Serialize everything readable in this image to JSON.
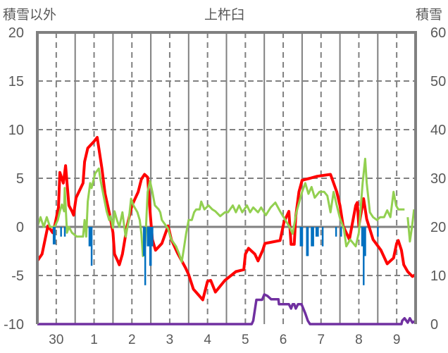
{
  "chart_data": {
    "type": "line",
    "title": "上杵臼",
    "ylabel_left": "積雪以外",
    "ylabel_right": "積雪",
    "ylim_left": [
      -10,
      20
    ],
    "yticks_left": [
      -10,
      -5,
      0,
      5,
      10,
      15,
      20
    ],
    "ylim_right": [
      0,
      60
    ],
    "yticks_right": [
      0,
      10,
      20,
      30,
      40,
      50,
      60
    ],
    "x_unit": "hours from start of day 30",
    "xlim": [
      0,
      240
    ],
    "xtick_labels": [
      "30",
      "1",
      "2",
      "3",
      "4",
      "5",
      "6",
      "7",
      "8",
      "9"
    ],
    "grid": true,
    "colors": {
      "temperature": "#ff0000",
      "wind": "#92d050",
      "precipitation": "#0070c0",
      "snow": "#7030a0",
      "axis": "#808080"
    },
    "series": [
      {
        "name": "red",
        "axis": "left",
        "type": "line",
        "points": [
          [
            0,
            -3.5
          ],
          [
            3,
            -2.8
          ],
          [
            6.7,
            0.1
          ],
          [
            9.8,
            -0.6
          ],
          [
            11,
            0.1
          ],
          [
            13.4,
            2
          ],
          [
            14.3,
            5.6
          ],
          [
            16.5,
            4.5
          ],
          [
            17.9,
            6.3
          ],
          [
            20,
            2.2
          ],
          [
            22,
            1.6
          ],
          [
            23,
            1.2
          ],
          [
            24.6,
            3
          ],
          [
            29,
            4.5
          ],
          [
            30,
            6.7
          ],
          [
            32,
            8.1
          ],
          [
            36,
            8.8
          ],
          [
            38,
            9.2
          ],
          [
            39,
            8.1
          ],
          [
            41,
            6
          ],
          [
            43,
            3.4
          ],
          [
            46,
            1.2
          ],
          [
            48,
            -0.6
          ],
          [
            49,
            -2.8
          ],
          [
            51,
            -3.5
          ],
          [
            52,
            -3.9
          ],
          [
            54,
            -2.8
          ],
          [
            57,
            0.1
          ],
          [
            60,
            2.2
          ],
          [
            64,
            3.6
          ],
          [
            66,
            4.9
          ],
          [
            68,
            5.4
          ],
          [
            70,
            5.1
          ],
          [
            71.5,
            1.6
          ],
          [
            73,
            -1.3
          ],
          [
            75,
            -2.4
          ],
          [
            79,
            -1.7
          ],
          [
            83,
            0.1
          ],
          [
            85,
            -1.3
          ],
          [
            89,
            -2.7
          ],
          [
            94,
            -4.2
          ],
          [
            96,
            -4.9
          ],
          [
            99,
            -6.4
          ],
          [
            105,
            -7.5
          ],
          [
            108,
            -5.6
          ],
          [
            110,
            -5.5
          ],
          [
            113,
            -6.7
          ],
          [
            119,
            -5.5
          ],
          [
            126,
            -4.6
          ],
          [
            131,
            -4.4
          ],
          [
            132,
            -2.8
          ],
          [
            134,
            -2.2
          ],
          [
            138,
            -2.8
          ],
          [
            140,
            -3.5
          ],
          [
            143,
            -2.4
          ],
          [
            144.4,
            -1.7
          ],
          [
            154,
            -1.4
          ],
          [
            156.5,
            0.5
          ],
          [
            159.6,
            1.6
          ],
          [
            161,
            -1.8
          ],
          [
            163,
            -1.8
          ],
          [
            164,
            1.1
          ],
          [
            166,
            3.6
          ],
          [
            168,
            4.8
          ],
          [
            173,
            5.0
          ],
          [
            177.5,
            5.2
          ],
          [
            186,
            5.4
          ],
          [
            190,
            3.6
          ],
          [
            192,
            2.2
          ],
          [
            194,
            0.1
          ],
          [
            198,
            -1.3
          ],
          [
            202,
            2.2
          ],
          [
            203,
            2.5
          ],
          [
            204,
            0.1
          ],
          [
            207,
            2.9
          ],
          [
            209,
            0.8
          ],
          [
            213,
            -1.3
          ],
          [
            218,
            -2.4
          ],
          [
            222,
            -3.8
          ],
          [
            226,
            -3.2
          ],
          [
            228,
            -1.7
          ],
          [
            229,
            -1.4
          ],
          [
            231,
            -2.4
          ],
          [
            232.5,
            -3.9
          ],
          [
            235,
            -4.6
          ],
          [
            238,
            -5.1
          ],
          [
            240,
            -4.9
          ]
        ]
      },
      {
        "name": "green",
        "axis": "left",
        "type": "line",
        "points": [
          [
            0,
            0
          ],
          [
            2,
            1
          ],
          [
            4,
            0
          ],
          [
            6,
            1
          ],
          [
            8,
            0
          ],
          [
            11,
            0
          ],
          [
            13,
            0.7
          ],
          [
            14.3,
            1.6
          ],
          [
            15.6,
            2.3
          ],
          [
            17,
            1.6
          ],
          [
            17.4,
            4
          ],
          [
            18.8,
            -0.6
          ],
          [
            20,
            0
          ],
          [
            22,
            -0.6
          ],
          [
            25,
            -1
          ],
          [
            29,
            -1
          ],
          [
            30,
            0.7
          ],
          [
            31,
            -1
          ],
          [
            32,
            2.6
          ],
          [
            33.5,
            4.5
          ],
          [
            34.4,
            4
          ],
          [
            36.7,
            5.5
          ],
          [
            39,
            6
          ],
          [
            40,
            4.9
          ],
          [
            42,
            3.2
          ],
          [
            44,
            1.6
          ],
          [
            45.6,
            0.7
          ],
          [
            46.5,
            1.1
          ],
          [
            48,
            -0.1
          ],
          [
            49,
            1.6
          ],
          [
            50.5,
            0.7
          ],
          [
            52,
            0
          ],
          [
            54,
            1.5
          ],
          [
            56,
            -1
          ],
          [
            58,
            0.7
          ],
          [
            59.5,
            2.9
          ],
          [
            61,
            2.2
          ],
          [
            63.5,
            1.5
          ],
          [
            65,
            0.7
          ],
          [
            66,
            -0.7
          ],
          [
            67,
            -3
          ],
          [
            68.4,
            -2
          ],
          [
            70,
            3.6
          ],
          [
            71.5,
            4.7
          ],
          [
            73,
            3.6
          ],
          [
            74.6,
            2.2
          ],
          [
            77,
            1.8
          ],
          [
            78,
            1.5
          ],
          [
            79,
            0.7
          ],
          [
            83,
            -0.2
          ],
          [
            85,
            -1.3
          ],
          [
            88,
            -2
          ],
          [
            90,
            -2.8
          ],
          [
            91.6,
            -3.6
          ],
          [
            93,
            -2.2
          ],
          [
            94.4,
            -0.7
          ],
          [
            96,
            0.7
          ],
          [
            98,
            0.7
          ],
          [
            99.5,
            1.5
          ],
          [
            100.8,
            1.8
          ],
          [
            103,
            1.8
          ],
          [
            104,
            2.6
          ],
          [
            106,
            1.8
          ],
          [
            108.6,
            2.2
          ],
          [
            111,
            1.8
          ],
          [
            113,
            1.6
          ],
          [
            116,
            1.1
          ],
          [
            119,
            1.5
          ],
          [
            121,
            1.5
          ],
          [
            124,
            2.2
          ],
          [
            126,
            1.5
          ],
          [
            128,
            2.2
          ],
          [
            130,
            1.5
          ],
          [
            133,
            2.2
          ],
          [
            135,
            1.5
          ],
          [
            137,
            2
          ],
          [
            140,
            1.5
          ],
          [
            142,
            2
          ],
          [
            145,
            1.2
          ],
          [
            148,
            2
          ],
          [
            151,
            2.5
          ],
          [
            154,
            1.6
          ],
          [
            157,
            0.8
          ],
          [
            160,
            0
          ],
          [
            162,
            -0.7
          ],
          [
            164.4,
            1.5
          ],
          [
            168,
            3.6
          ],
          [
            170,
            4.5
          ],
          [
            172,
            3.4
          ],
          [
            174,
            4.1
          ],
          [
            176,
            3.0
          ],
          [
            179,
            3.6
          ],
          [
            182,
            3.6
          ],
          [
            184,
            3.2
          ],
          [
            186,
            1.5
          ],
          [
            188,
            3.6
          ],
          [
            190,
            2.2
          ],
          [
            192,
            0.9
          ],
          [
            194.5,
            -0.2
          ],
          [
            196,
            -2
          ],
          [
            198.5,
            -1.3
          ],
          [
            202,
            -2
          ],
          [
            204,
            -0.6
          ],
          [
            206.4,
            4.5
          ],
          [
            208,
            7
          ],
          [
            209,
            4.5
          ],
          [
            211,
            1.5
          ],
          [
            213,
            1
          ],
          [
            215.5,
            0.7
          ],
          [
            217.5,
            1
          ],
          [
            220,
            1
          ],
          [
            222,
            1.7
          ],
          [
            224,
            1
          ],
          [
            226,
            3.6
          ],
          [
            227.6,
            2.2
          ],
          [
            229,
            1.8
          ],
          [
            233,
            1.8
          ],
          null,
          [
            235,
            1
          ],
          [
            236.4,
            -1.5
          ],
          [
            237.7,
            0
          ],
          [
            239,
            1.8
          ]
        ]
      },
      {
        "name": "blue",
        "axis": "left",
        "type": "bar",
        "points": [
          [
            10.3,
            -1.8
          ],
          [
            11,
            -1.8
          ],
          [
            15,
            -1
          ],
          [
            17.4,
            -1
          ],
          [
            33,
            -2
          ],
          [
            34,
            -2
          ],
          [
            34.4,
            -4
          ],
          [
            67.5,
            -3
          ],
          [
            68.4,
            -6
          ],
          [
            70,
            -2
          ],
          [
            71,
            -2
          ],
          [
            71.5,
            -4
          ],
          [
            72,
            -4
          ],
          [
            73,
            -2
          ],
          [
            167,
            -2
          ],
          [
            168,
            -2
          ],
          [
            171,
            -3
          ],
          [
            171.6,
            -3
          ],
          [
            174,
            -2
          ],
          [
            175,
            -2
          ],
          [
            177,
            -1
          ],
          [
            178,
            -1
          ],
          [
            181,
            -2
          ],
          [
            189.5,
            -1
          ],
          [
            192.7,
            -1
          ],
          [
            206,
            -2
          ],
          [
            207,
            -6
          ],
          [
            208,
            -3
          ],
          [
            216,
            -1
          ]
        ]
      },
      {
        "name": "purple",
        "axis": "right",
        "type": "line",
        "points": [
          [
            0,
            0
          ],
          [
            136,
            0
          ],
          [
            137,
            0.7
          ],
          [
            139,
            5
          ],
          [
            142.6,
            5
          ],
          [
            144,
            6.1
          ],
          [
            146,
            5.8
          ],
          [
            148.4,
            5.1
          ],
          [
            153,
            5.1
          ],
          [
            153.3,
            4.1
          ],
          [
            159.6,
            4.1
          ],
          [
            161,
            3.2
          ],
          [
            162,
            4.1
          ],
          [
            163,
            4.1
          ],
          [
            164,
            3.2
          ],
          [
            165.4,
            4.1
          ],
          [
            167.6,
            4.1
          ],
          [
            170,
            2.2
          ],
          [
            171.6,
            0.7
          ],
          [
            173,
            0
          ],
          [
            231,
            0
          ],
          [
            231.5,
            0.7
          ],
          [
            233,
            1.2
          ],
          [
            235,
            0.3
          ],
          [
            236.4,
            1.2
          ],
          [
            238,
            0.3
          ],
          [
            240,
            0.7
          ]
        ]
      }
    ]
  }
}
